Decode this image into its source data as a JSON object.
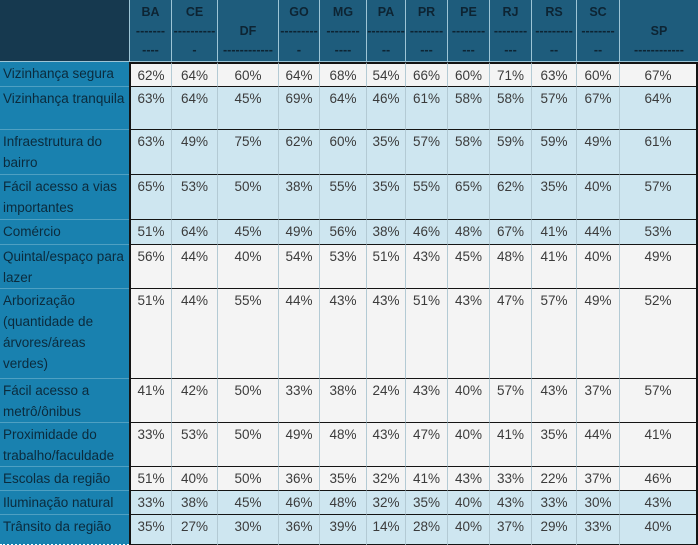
{
  "table": {
    "columns": [
      {
        "code": "BA",
        "lines": [
          "BA",
          "-------",
          "----"
        ]
      },
      {
        "code": "CE",
        "lines": [
          "CE",
          "----------",
          "-"
        ]
      },
      {
        "code": "DF",
        "lines": [
          "",
          "DF",
          "------------"
        ]
      },
      {
        "code": "GO",
        "lines": [
          "GO",
          "----------",
          "-"
        ]
      },
      {
        "code": "MG",
        "lines": [
          "MG",
          "--------",
          "----"
        ]
      },
      {
        "code": "PA",
        "lines": [
          "PA",
          "---------",
          "--"
        ]
      },
      {
        "code": "PR",
        "lines": [
          "PR",
          "--------",
          "---"
        ]
      },
      {
        "code": "PE",
        "lines": [
          "PE",
          "--------",
          "---"
        ]
      },
      {
        "code": "RJ",
        "lines": [
          "RJ",
          "--------",
          "---"
        ]
      },
      {
        "code": "RS",
        "lines": [
          "RS",
          "---------",
          "--"
        ]
      },
      {
        "code": "SC",
        "lines": [
          "SC",
          "--------",
          "--"
        ]
      },
      {
        "code": "SP",
        "lines": [
          "",
          "SP",
          "------------"
        ]
      }
    ],
    "rows": [
      {
        "label": "Vizinhança segura",
        "shade": "light",
        "values": [
          "62%",
          "64%",
          "60%",
          "64%",
          "68%",
          "54%",
          "66%",
          "60%",
          "71%",
          "63%",
          "60%",
          "67%"
        ]
      },
      {
        "label": "Vizinhança tranquila",
        "shade": "blue",
        "values": [
          "63%",
          "64%",
          "45%",
          "69%",
          "64%",
          "46%",
          "61%",
          "58%",
          "58%",
          "57%",
          "67%",
          "64%"
        ]
      },
      {
        "label": "Infraestrutura do bairro",
        "shade": "blue",
        "values": [
          "63%",
          "49%",
          "75%",
          "62%",
          "60%",
          "35%",
          "57%",
          "58%",
          "59%",
          "59%",
          "49%",
          "61%"
        ]
      },
      {
        "label": "Fácil acesso a vias importantes",
        "shade": "blue",
        "values": [
          "65%",
          "53%",
          "50%",
          "38%",
          "55%",
          "35%",
          "55%",
          "65%",
          "62%",
          "35%",
          "40%",
          "57%"
        ]
      },
      {
        "label": "Comércio",
        "shade": "blue",
        "values": [
          "51%",
          "64%",
          "45%",
          "49%",
          "56%",
          "38%",
          "46%",
          "48%",
          "67%",
          "41%",
          "44%",
          "53%"
        ]
      },
      {
        "label": "Quintal/espaço para lazer",
        "shade": "light",
        "values": [
          "56%",
          "44%",
          "40%",
          "54%",
          "53%",
          "51%",
          "43%",
          "45%",
          "48%",
          "41%",
          "40%",
          "49%"
        ]
      },
      {
        "label": "Arborização (quantidade de árvores/áreas verdes)",
        "shade": "light",
        "values": [
          "51%",
          "44%",
          "55%",
          "44%",
          "43%",
          "43%",
          "51%",
          "43%",
          "47%",
          "57%",
          "49%",
          "52%"
        ]
      },
      {
        "label": "Fácil acesso a metrô/ônibus",
        "shade": "light",
        "values": [
          "41%",
          "42%",
          "50%",
          "33%",
          "38%",
          "24%",
          "43%",
          "40%",
          "57%",
          "43%",
          "37%",
          "57%"
        ]
      },
      {
        "label": "Proximidade do trabalho/faculdade",
        "shade": "light",
        "values": [
          "33%",
          "53%",
          "50%",
          "49%",
          "48%",
          "43%",
          "47%",
          "40%",
          "41%",
          "35%",
          "44%",
          "41%"
        ]
      },
      {
        "label": "Escolas da região",
        "shade": "light",
        "values": [
          "51%",
          "40%",
          "50%",
          "36%",
          "35%",
          "32%",
          "41%",
          "43%",
          "33%",
          "22%",
          "37%",
          "46%"
        ]
      },
      {
        "label": "Iluminação natural",
        "shade": "blue",
        "values": [
          "33%",
          "38%",
          "45%",
          "46%",
          "48%",
          "32%",
          "35%",
          "40%",
          "43%",
          "33%",
          "30%",
          "43%"
        ]
      },
      {
        "label": "Trânsito da região",
        "shade": "blue",
        "values": [
          "35%",
          "27%",
          "30%",
          "36%",
          "39%",
          "14%",
          "28%",
          "40%",
          "37%",
          "29%",
          "33%",
          "40%"
        ]
      }
    ]
  },
  "chart_data": {
    "type": "table",
    "unit": "%",
    "columns": [
      "BA",
      "CE",
      "DF",
      "GO",
      "MG",
      "PA",
      "PR",
      "PE",
      "RJ",
      "RS",
      "SC",
      "SP"
    ],
    "rows": [
      {
        "label": "Vizinhança segura",
        "values": [
          62,
          64,
          60,
          64,
          68,
          54,
          66,
          60,
          71,
          63,
          60,
          67
        ]
      },
      {
        "label": "Vizinhança tranquila",
        "values": [
          63,
          64,
          45,
          69,
          64,
          46,
          61,
          58,
          58,
          57,
          67,
          64
        ]
      },
      {
        "label": "Infraestrutura do bairro",
        "values": [
          63,
          49,
          75,
          62,
          60,
          35,
          57,
          58,
          59,
          59,
          49,
          61
        ]
      },
      {
        "label": "Fácil acesso a vias importantes",
        "values": [
          65,
          53,
          50,
          38,
          55,
          35,
          55,
          65,
          62,
          35,
          40,
          57
        ]
      },
      {
        "label": "Comércio",
        "values": [
          51,
          64,
          45,
          49,
          56,
          38,
          46,
          48,
          67,
          41,
          44,
          53
        ]
      },
      {
        "label": "Quintal/espaço para lazer",
        "values": [
          56,
          44,
          40,
          54,
          53,
          51,
          43,
          45,
          48,
          41,
          40,
          49
        ]
      },
      {
        "label": "Arborização (quantidade de árvores/áreas verdes)",
        "values": [
          51,
          44,
          55,
          44,
          43,
          43,
          51,
          43,
          47,
          57,
          49,
          52
        ]
      },
      {
        "label": "Fácil acesso a metrô/ônibus",
        "values": [
          41,
          42,
          50,
          33,
          38,
          24,
          43,
          40,
          57,
          43,
          37,
          57
        ]
      },
      {
        "label": "Proximidade do trabalho/faculdade",
        "values": [
          33,
          53,
          50,
          49,
          48,
          43,
          47,
          40,
          41,
          35,
          44,
          41
        ]
      },
      {
        "label": "Escolas da região",
        "values": [
          51,
          40,
          50,
          36,
          35,
          32,
          41,
          43,
          33,
          22,
          37,
          46
        ]
      },
      {
        "label": "Iluminação natural",
        "values": [
          33,
          38,
          45,
          46,
          48,
          32,
          35,
          40,
          43,
          33,
          30,
          43
        ]
      },
      {
        "label": "Trânsito da região",
        "values": [
          35,
          27,
          30,
          36,
          39,
          14,
          28,
          40,
          37,
          29,
          33,
          40
        ]
      }
    ]
  },
  "colors": {
    "corner_bg": "#16394F",
    "header_bg": "#1E5C7C",
    "header_text": "#0D2433",
    "label_bg": "#1981AF",
    "label_text": "#0B2B3D",
    "row_light_bg": "#F4F4F4",
    "row_blue_bg": "#CEE6F0",
    "value_text": "#3B3B3B",
    "border_dark": "#141414",
    "border_light_blue": "#9DC5D6",
    "border_gray": "#B3CAD4",
    "label_divider": "#4FA0C2",
    "selection_dotted": "#FFFFFF"
  }
}
